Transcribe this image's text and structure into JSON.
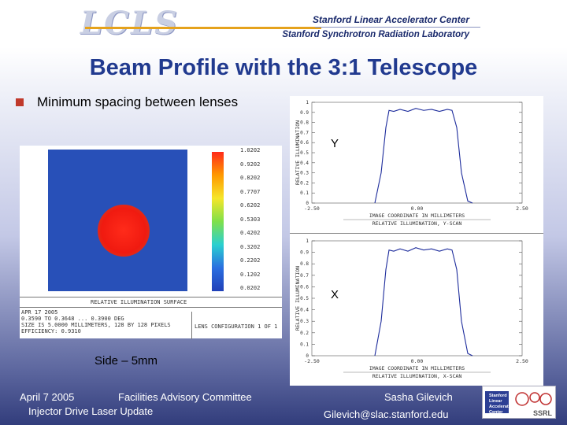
{
  "header": {
    "logo": "LCLS",
    "org_line1": "Stanford Linear Accelerator Center",
    "org_line2": "Stanford Synchrotron Radiation Laboratory"
  },
  "slide": {
    "title": "Beam Profile with the  3:1 Telescope",
    "bullet": "Minimum spacing between lenses",
    "side_caption": "Side – 5mm"
  },
  "beam_image": {
    "colorbar_labels": [
      "1.0202",
      "0.9202",
      "0.8202",
      "0.7707",
      "0.6202",
      "0.5303",
      "0.4202",
      "0.3202",
      "0.2202",
      "0.1202",
      "0.0202"
    ],
    "caption_title": "RELATIVE ILLUMINATION SURFACE",
    "caption_left": [
      "APR 17 2005",
      "0.3590 TO 0.3648 ... 0.3900 DEG",
      "SIZE IS 5.0000 MILLIMETERS, 128 BY 128 PIXELS",
      "EFFICIENCY: 0.9310"
    ],
    "caption_right": [
      "LENS CONFIGURATION 1 OF 1"
    ]
  },
  "scan_y": {
    "label": "Y",
    "ylabel": "RELATIVE ILLUMINATION",
    "yticks": [
      "1",
      "0.9",
      "0.8",
      "0.7",
      "0.6",
      "0.5",
      "0.4",
      "0.3",
      "0.2",
      "0.1",
      "0"
    ],
    "xticks": [
      "-2.50",
      "0.00",
      "2.50"
    ],
    "xlabel": "IMAGE COORDINATE IN MILLIMETERS",
    "caption": "RELATIVE ILLUMINATION, Y-SCAN"
  },
  "scan_x": {
    "label": "X",
    "ylabel": "RELATIVE ILLUMINATION",
    "yticks": [
      "1",
      "0.9",
      "0.8",
      "0.7",
      "0.6",
      "0.5",
      "0.4",
      "0.3",
      "0.2",
      "0.1",
      "0"
    ],
    "xticks": [
      "-2.50",
      "0.00",
      "2.50"
    ],
    "xlabel": "IMAGE COORDINATE IN MILLIMETERS",
    "caption": "RELATIVE ILLUMINATION, X-SCAN"
  },
  "footer": {
    "date": "April 7 2005",
    "committee": "Facilities Advisory Committee",
    "update": "Injector Drive Laser Update",
    "author": "Sasha Gilevich",
    "email": "Gilevich@slac.stanford.edu",
    "logo_text": "Stanford Linear Accelerator Center",
    "ssrl": "SSRL"
  }
}
